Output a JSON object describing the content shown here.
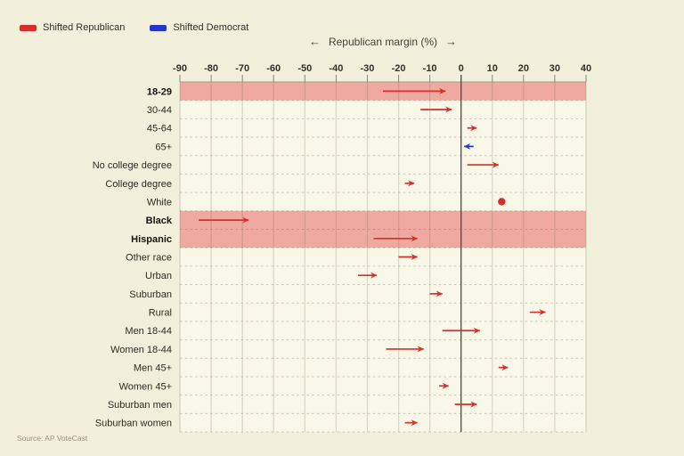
{
  "legend": {
    "items": [
      {
        "label": "Shifted Republican",
        "color": "#d6302b"
      },
      {
        "label": "Shifted Democrat",
        "color": "#2536c9"
      }
    ]
  },
  "axis": {
    "left_arrow": "←",
    "title": "Republican margin (%)",
    "right_arrow": "→"
  },
  "source": "Source: AP VoteCast",
  "colors": {
    "page_bg": "#f2efda",
    "plot_bg": "#f9f7e8",
    "highlight_band": "#efa9a0",
    "republican": "#d6302b",
    "democrat": "#2536c9",
    "gridline": "rgba(105,95,70,0.20)",
    "row_divider": "rgba(105,95,70,0.32)",
    "zero_line": "#54514a",
    "tick_mark": "#8a8574",
    "top_axis_line": "#a59f8e"
  },
  "chart_data": {
    "type": "scatter",
    "variant": "arrow-shift-dumbbell",
    "xlabel": "Republican margin (%)",
    "xlim": [
      -90,
      40
    ],
    "x_ticks": [
      -90,
      -80,
      -70,
      -60,
      -50,
      -40,
      -30,
      -20,
      -10,
      0,
      10,
      20,
      30,
      40
    ],
    "grid": true,
    "legend_entries": [
      "Shifted Republican",
      "Shifted Democrat"
    ],
    "rows": [
      {
        "label": "18-29",
        "from": -25,
        "to": -5,
        "shift": "republican",
        "highlight": true
      },
      {
        "label": "30-44",
        "from": -13,
        "to": -3,
        "shift": "republican",
        "highlight": false
      },
      {
        "label": "45-64",
        "from": 2,
        "to": 5,
        "shift": "republican",
        "highlight": false
      },
      {
        "label": "65+",
        "from": 4,
        "to": 1,
        "shift": "democrat",
        "highlight": false
      },
      {
        "label": "No college degree",
        "from": 2,
        "to": 12,
        "shift": "republican",
        "highlight": false
      },
      {
        "label": "College degree",
        "from": -18,
        "to": -15,
        "shift": "republican",
        "highlight": false
      },
      {
        "label": "White",
        "from": 13,
        "to": 13,
        "shift": "none",
        "marker": "dot",
        "highlight": false
      },
      {
        "label": "Black",
        "from": -84,
        "to": -68,
        "shift": "republican",
        "highlight": true
      },
      {
        "label": "Hispanic",
        "from": -28,
        "to": -14,
        "shift": "republican",
        "highlight": true
      },
      {
        "label": "Other race",
        "from": -20,
        "to": -14,
        "shift": "republican",
        "highlight": false
      },
      {
        "label": "Urban",
        "from": -33,
        "to": -27,
        "shift": "republican",
        "highlight": false
      },
      {
        "label": "Suburban",
        "from": -10,
        "to": -6,
        "shift": "republican",
        "highlight": false
      },
      {
        "label": "Rural",
        "from": 22,
        "to": 27,
        "shift": "republican",
        "highlight": false
      },
      {
        "label": "Men 18-44",
        "from": -6,
        "to": 6,
        "shift": "republican",
        "highlight": false
      },
      {
        "label": "Women 18-44",
        "from": -24,
        "to": -12,
        "shift": "republican",
        "highlight": false
      },
      {
        "label": "Men 45+",
        "from": 12,
        "to": 15,
        "shift": "republican",
        "highlight": false
      },
      {
        "label": "Women 45+",
        "from": -7,
        "to": -4,
        "shift": "republican",
        "highlight": false
      },
      {
        "label": "Suburban men",
        "from": -2,
        "to": 5,
        "shift": "republican",
        "highlight": false
      },
      {
        "label": "Suburban women",
        "from": -18,
        "to": -14,
        "shift": "republican",
        "highlight": false
      }
    ]
  }
}
